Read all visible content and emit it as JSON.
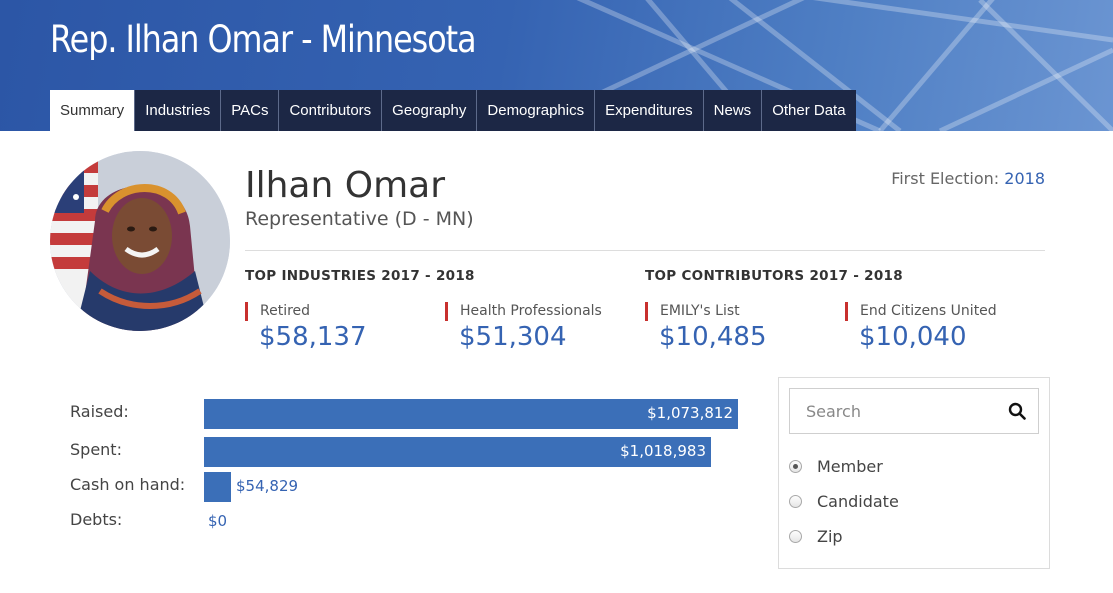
{
  "header": {
    "title": "Rep. Ilhan Omar - Minnesota"
  },
  "nav": {
    "tabs": [
      {
        "label": "Summary",
        "active": true
      },
      {
        "label": "Industries",
        "active": false
      },
      {
        "label": "PACs",
        "active": false
      },
      {
        "label": "Contributors",
        "active": false
      },
      {
        "label": "Geography",
        "active": false
      },
      {
        "label": "Demographics",
        "active": false
      },
      {
        "label": "Expenditures",
        "active": false
      },
      {
        "label": "News",
        "active": false
      },
      {
        "label": "Other Data",
        "active": false
      }
    ]
  },
  "profile": {
    "name": "Ilhan Omar",
    "role": "Representative (D - MN)",
    "first_election_label": "First Election:",
    "first_election_year": "2018"
  },
  "top_industries": {
    "heading": "TOP INDUSTRIES 2017 - 2018",
    "items": [
      {
        "label": "Retired",
        "value": "$58,137"
      },
      {
        "label": "Health Professionals",
        "value": "$51,304"
      }
    ]
  },
  "top_contributors": {
    "heading": "TOP CONTRIBUTORS 2017 - 2018",
    "items": [
      {
        "label": "EMILY's List",
        "value": "$10,485"
      },
      {
        "label": "End Citizens United",
        "value": "$10,040"
      }
    ]
  },
  "finances": {
    "rows": [
      {
        "label": "Raised:",
        "value": "$1,073,812",
        "amount": 1073812
      },
      {
        "label": "Spent:",
        "value": "$1,018,983",
        "amount": 1018983
      },
      {
        "label": "Cash on hand:",
        "value": "$54,829",
        "amount": 54829
      },
      {
        "label": "Debts:",
        "value": "$0",
        "amount": 0
      }
    ]
  },
  "search": {
    "placeholder": "Search",
    "options": [
      {
        "label": "Member",
        "checked": true
      },
      {
        "label": "Candidate",
        "checked": false
      },
      {
        "label": "Zip",
        "checked": false
      }
    ]
  },
  "colors": {
    "header_blue": "#3563b2",
    "nav_dark": "#1c2745",
    "bar_blue": "#3b6fb8",
    "accent_red": "#c8302e",
    "link_blue": "#3563b2"
  },
  "icons": {
    "search": "search-icon"
  }
}
